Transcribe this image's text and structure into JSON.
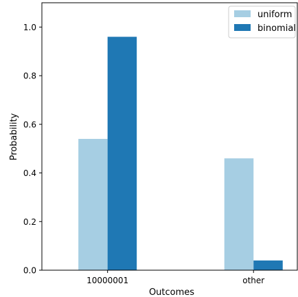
{
  "chart_data": {
    "type": "bar",
    "title": "",
    "xlabel": "Outcomes",
    "ylabel": "Probability",
    "categories": [
      "10000001",
      "other"
    ],
    "series": [
      {
        "name": "uniform",
        "color": "#a6cee3",
        "values": [
          0.54,
          0.46
        ]
      },
      {
        "name": "binomial",
        "color": "#1f78b4",
        "values": [
          0.96,
          0.04
        ]
      }
    ],
    "ylim": [
      0,
      1.1
    ],
    "yticks": [
      0.0,
      0.2,
      0.4,
      0.6,
      0.8,
      1.0
    ],
    "ytick_labels": [
      "0.0",
      "0.2",
      "0.4",
      "0.6",
      "0.8",
      "1.0"
    ],
    "grid": false,
    "legend_position": "top-right"
  }
}
